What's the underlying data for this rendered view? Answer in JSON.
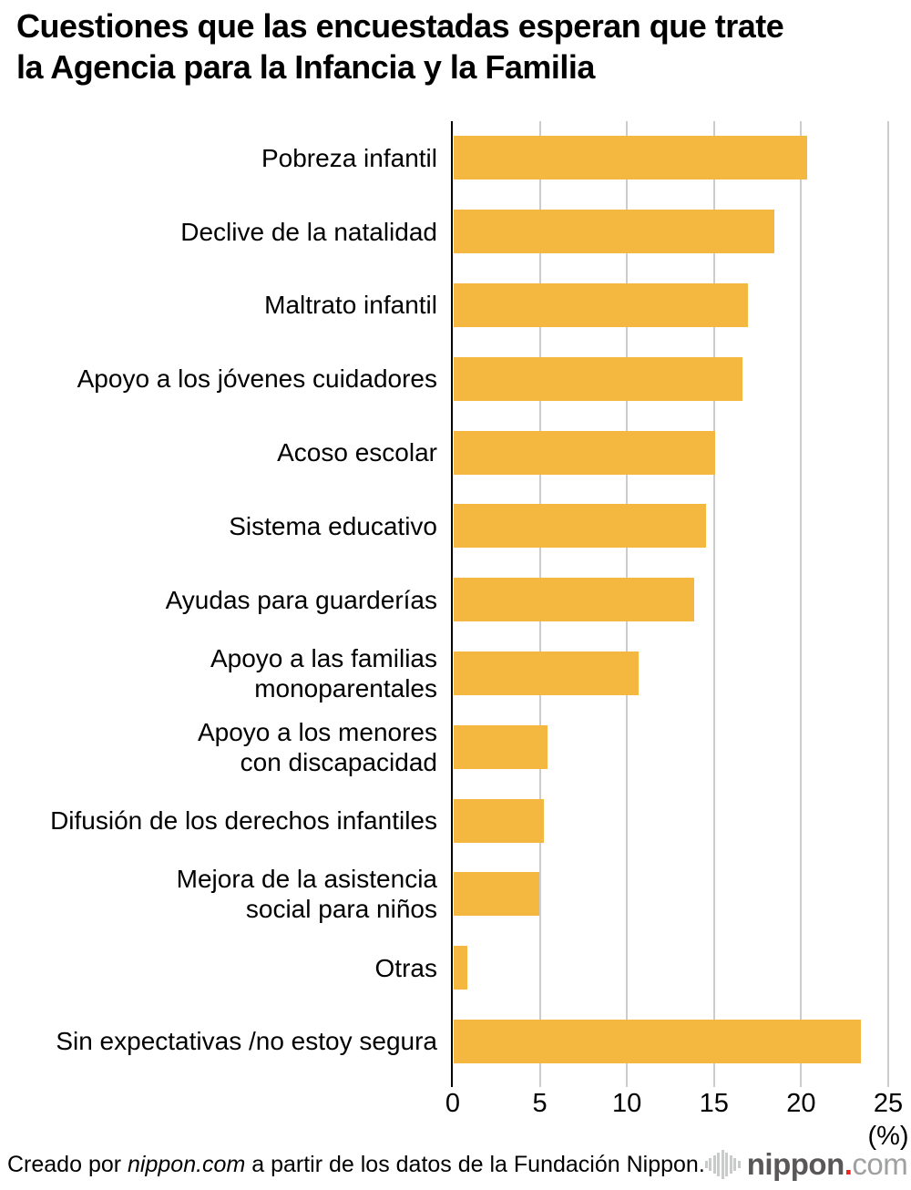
{
  "header": {
    "title_line1": "Cuestiones que las encuestadas esperan que trate",
    "title_line2": "la Agencia para la Infancia y la Familia"
  },
  "chart_data": {
    "type": "bar",
    "orientation": "horizontal",
    "title": "Cuestiones que las encuestadas esperan que trate la Agencia para la Infancia y la Familia",
    "categories": [
      "Pobreza infantil",
      "Declive de la natalidad",
      "Maltrato infantil",
      "Apoyo a los jóvenes cuidadores",
      "Acoso escolar",
      "Sistema educativo",
      "Ayudas para guarderías",
      "Apoyo a las familias\nmonoparentales",
      "Apoyo a los menores\ncon discapacidad",
      "Difusión de los derechos infantiles",
      "Mejora de la asistencia\nsocial para niños",
      "Otras",
      "Sin expectativas /no estoy segura"
    ],
    "values": [
      20.3,
      18.4,
      16.9,
      16.6,
      15,
      14.5,
      13.8,
      10.6,
      5.4,
      5.2,
      4.9,
      0.8,
      23.4
    ],
    "unit": "%",
    "xlabel": "(%)",
    "xlim": [
      0,
      25
    ],
    "xticks": [
      0,
      5,
      10,
      15,
      20,
      25
    ],
    "grid": true,
    "legend": false,
    "bar_color": "#F4B840",
    "grid_color": "#CCCCCC",
    "axis_color": "#000000"
  },
  "footer": {
    "credit": {
      "prefix": "Creado por ",
      "source": "nippon.com",
      "suffix": " a partir de los datos de la Fundación Nippon."
    },
    "logo": {
      "brand": "nippon",
      "dot": ".",
      "tld": "com",
      "brand_color": "#595757",
      "dot_color": "#E8281E",
      "tld_color": "#9FA0A0",
      "icon_color": "#C9CACA"
    }
  }
}
